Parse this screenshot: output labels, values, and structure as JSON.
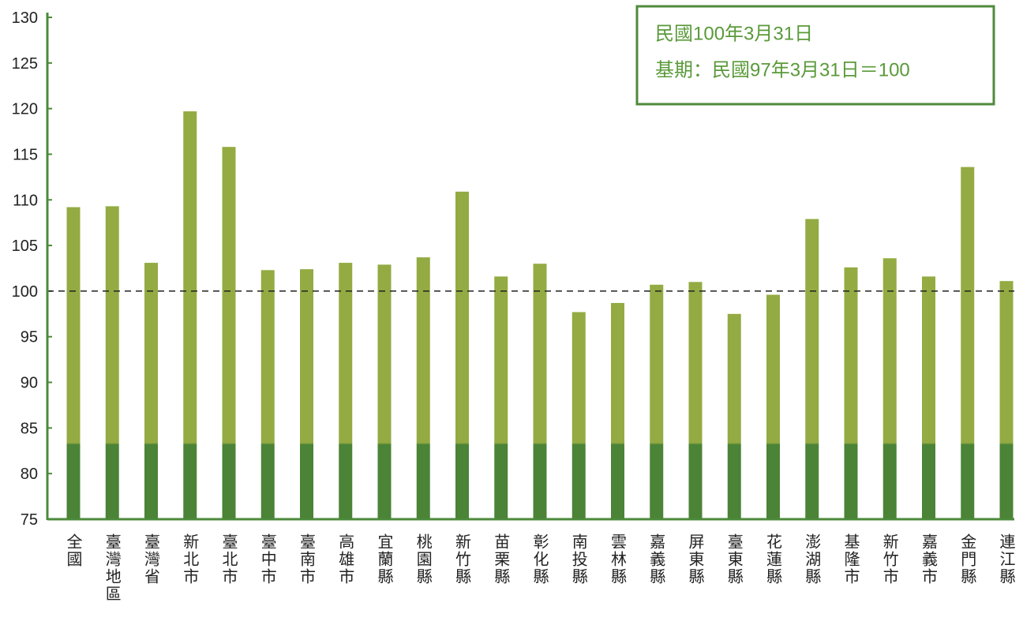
{
  "chart_data": {
    "type": "bar",
    "annotations": [
      "民國100年3月31日",
      "基期：民國97年3月31日＝100"
    ],
    "categories": [
      "全國",
      "臺灣地區",
      "臺灣省",
      "新北市",
      "臺北市",
      "臺中市",
      "臺南市",
      "高雄市",
      "宜蘭縣",
      "桃園縣",
      "新竹縣",
      "苗栗縣",
      "彰化縣",
      "南投縣",
      "雲林縣",
      "嘉義縣",
      "屏東縣",
      "臺東縣",
      "花蓮縣",
      "澎湖縣",
      "基隆市",
      "新竹市",
      "嘉義市",
      "金門縣",
      "連江縣"
    ],
    "values": [
      109.2,
      109.3,
      103.1,
      119.7,
      115.8,
      102.3,
      102.4,
      103.1,
      102.9,
      103.7,
      110.9,
      101.6,
      103.0,
      97.7,
      98.7,
      100.7,
      101.0,
      97.5,
      99.6,
      107.9,
      102.6,
      103.6,
      101.6,
      113.6,
      101.1
    ],
    "color": "#93ab42",
    "reference_line": 100,
    "ylim": [
      75,
      130
    ],
    "yticks": [
      75,
      80,
      85,
      90,
      95,
      100,
      105,
      110,
      115,
      120,
      125,
      130
    ],
    "grid": false
  }
}
